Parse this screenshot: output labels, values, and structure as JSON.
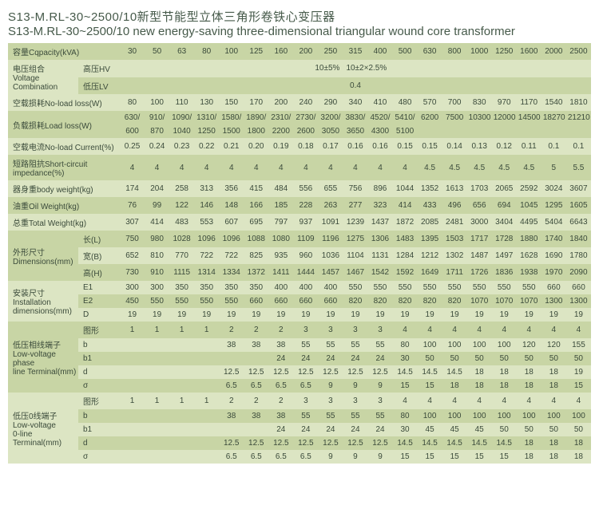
{
  "title_cn": "S13-M.RL-30~2500/10新型节能型立体三角形卷铁心变压器",
  "title_en": "S13-M.RL-30~2500/10 new energy-saving three-dimensional triangular wound core transformer",
  "colors": {
    "dark": "#c8d5a5",
    "light": "#dce5c3",
    "text": "#3a4a3a",
    "titleText": "#465a4a"
  },
  "capacity": {
    "label": "容量Cqpacity(kVA)",
    "vals": [
      "30",
      "50",
      "63",
      "80",
      "100",
      "125",
      "160",
      "200",
      "250",
      "315",
      "400",
      "500",
      "630",
      "800",
      "1000",
      "1250",
      "1600",
      "2000",
      "2500"
    ]
  },
  "voltage": {
    "label": "电压组合\nVoltage Combination",
    "hv_label": "高压HV",
    "hv_a": "10±5%",
    "hv_b": "10±2×2.5%",
    "lv_label": "低压LV",
    "lv": "0.4"
  },
  "noload": {
    "label": "空载损耗No-load loss(W)",
    "vals": [
      "80",
      "100",
      "110",
      "130",
      "150",
      "170",
      "200",
      "240",
      "290",
      "340",
      "410",
      "480",
      "570",
      "700",
      "830",
      "970",
      "1170",
      "1540",
      "1810"
    ]
  },
  "loadloss": {
    "label": "负载损耗Load loss(W)",
    "row1": [
      "630/",
      "910/",
      "1090/",
      "1310/",
      "1580/",
      "1890/",
      "2310/",
      "2730/",
      "3200/",
      "3830/",
      "4520/",
      "5410/",
      "6200",
      "7500",
      "10300",
      "12000",
      "14500",
      "18270",
      "21210"
    ],
    "row2": [
      "600",
      "870",
      "1040",
      "1250",
      "1500",
      "1800",
      "2200",
      "2600",
      "3050",
      "3650",
      "4300",
      "5100",
      "",
      "",
      "",
      "",
      "",
      "",
      ""
    ]
  },
  "nlcurrent": {
    "label": "空载电流No-load Current(%)",
    "vals": [
      "0.25",
      "0.24",
      "0.23",
      "0.22",
      "0.21",
      "0.20",
      "0.19",
      "0.18",
      "0.17",
      "0.16",
      "0.16",
      "0.15",
      "0.15",
      "0.14",
      "0.13",
      "0.12",
      "0.11",
      "0.1",
      "0.1"
    ]
  },
  "sc": {
    "label": "短路阻抗Short-circuit impedance(%)",
    "vals": [
      "4",
      "4",
      "4",
      "4",
      "4",
      "4",
      "4",
      "4",
      "4",
      "4",
      "4",
      "4",
      "4.5",
      "4.5",
      "4.5",
      "4.5",
      "4.5",
      "5",
      "5.5"
    ]
  },
  "body": {
    "label": "器身重body weight(kg)",
    "vals": [
      "174",
      "204",
      "258",
      "313",
      "356",
      "415",
      "484",
      "556",
      "655",
      "756",
      "896",
      "1044",
      "1352",
      "1613",
      "1703",
      "2065",
      "2592",
      "3024",
      "3607"
    ]
  },
  "oil": {
    "label": "油重Oil Weight(kg)",
    "vals": [
      "76",
      "99",
      "122",
      "146",
      "148",
      "166",
      "185",
      "228",
      "263",
      "277",
      "323",
      "414",
      "433",
      "496",
      "656",
      "694",
      "1045",
      "1295",
      "1605"
    ]
  },
  "total": {
    "label": "总重Total Weight(kg)",
    "vals": [
      "307",
      "414",
      "483",
      "553",
      "607",
      "695",
      "797",
      "937",
      "1091",
      "1239",
      "1437",
      "1872",
      "2085",
      "2481",
      "3000",
      "3404",
      "4495",
      "5404",
      "6643"
    ]
  },
  "dims": {
    "label": "外形尺寸\nDimensions(mm)",
    "L": {
      "lab": "长(L)",
      "vals": [
        "750",
        "980",
        "1028",
        "1096",
        "1096",
        "1088",
        "1080",
        "1109",
        "1196",
        "1275",
        "1306",
        "1483",
        "1395",
        "1503",
        "1717",
        "1728",
        "1880",
        "1740",
        "1840"
      ]
    },
    "B": {
      "lab": "宽(B)",
      "vals": [
        "652",
        "810",
        "770",
        "722",
        "722",
        "825",
        "935",
        "960",
        "1036",
        "1104",
        "1131",
        "1284",
        "1212",
        "1302",
        "1487",
        "1497",
        "1628",
        "1690",
        "1780"
      ]
    },
    "H": {
      "lab": "高(H)",
      "vals": [
        "730",
        "910",
        "1115",
        "1314",
        "1334",
        "1372",
        "1411",
        "1444",
        "1457",
        "1467",
        "1542",
        "1592",
        "1649",
        "1711",
        "1726",
        "1836",
        "1938",
        "1970",
        "2090"
      ]
    }
  },
  "inst": {
    "label": "安装尺寸\nInstallation\ndimensions(mm)",
    "E1": {
      "lab": "E1",
      "vals": [
        "300",
        "300",
        "350",
        "350",
        "350",
        "350",
        "400",
        "400",
        "400",
        "550",
        "550",
        "550",
        "550",
        "550",
        "550",
        "550",
        "550",
        "660",
        "660"
      ]
    },
    "E2": {
      "lab": "E2",
      "vals": [
        "450",
        "550",
        "550",
        "550",
        "550",
        "660",
        "660",
        "660",
        "660",
        "820",
        "820",
        "820",
        "820",
        "820",
        "1070",
        "1070",
        "1070",
        "1300",
        "1300"
      ]
    },
    "D": {
      "lab": "D",
      "vals": [
        "19",
        "19",
        "19",
        "19",
        "19",
        "19",
        "19",
        "19",
        "19",
        "19",
        "19",
        "19",
        "19",
        "19",
        "19",
        "19",
        "19",
        "19",
        "19"
      ]
    }
  },
  "phase": {
    "label": "低压相线端子\nLow-voltage phase\nline Terminal(mm)",
    "tx": {
      "lab": "图形",
      "vals": [
        "1",
        "1",
        "1",
        "1",
        "2",
        "2",
        "2",
        "3",
        "3",
        "3",
        "3",
        "4",
        "4",
        "4",
        "4",
        "4",
        "4",
        "4",
        "4"
      ]
    },
    "b": {
      "lab": "b",
      "vals": [
        "",
        "",
        "",
        "",
        "38",
        "38",
        "38",
        "55",
        "55",
        "55",
        "55",
        "80",
        "100",
        "100",
        "100",
        "100",
        "120",
        "120",
        "155"
      ]
    },
    "b1": {
      "lab": "b1",
      "vals": [
        "",
        "",
        "",
        "",
        "",
        "",
        "24",
        "24",
        "24",
        "24",
        "24",
        "30",
        "50",
        "50",
        "50",
        "50",
        "50",
        "50",
        "50"
      ]
    },
    "d": {
      "lab": "d",
      "vals": [
        "",
        "",
        "",
        "",
        "12.5",
        "12.5",
        "12.5",
        "12.5",
        "12.5",
        "12.5",
        "12.5",
        "14.5",
        "14.5",
        "14.5",
        "18",
        "18",
        "18",
        "18",
        "19"
      ]
    },
    "s": {
      "lab": "σ",
      "vals": [
        "",
        "",
        "",
        "",
        "6.5",
        "6.5",
        "6.5",
        "6.5",
        "9",
        "9",
        "9",
        "15",
        "15",
        "18",
        "18",
        "18",
        "18",
        "18",
        "15"
      ]
    }
  },
  "zero": {
    "label": "低压0线端子\nLow-voltage\n0-line Terminal(mm)",
    "tx": {
      "lab": "图形",
      "vals": [
        "1",
        "1",
        "1",
        "1",
        "2",
        "2",
        "2",
        "3",
        "3",
        "3",
        "3",
        "4",
        "4",
        "4",
        "4",
        "4",
        "4",
        "4",
        "4"
      ]
    },
    "b": {
      "lab": "b",
      "vals": [
        "",
        "",
        "",
        "",
        "38",
        "38",
        "38",
        "55",
        "55",
        "55",
        "55",
        "80",
        "100",
        "100",
        "100",
        "100",
        "100",
        "100",
        "100"
      ]
    },
    "b1": {
      "lab": "b1",
      "vals": [
        "",
        "",
        "",
        "",
        "",
        "",
        "24",
        "24",
        "24",
        "24",
        "24",
        "30",
        "45",
        "45",
        "45",
        "50",
        "50",
        "50",
        "50"
      ]
    },
    "d": {
      "lab": "d",
      "vals": [
        "",
        "",
        "",
        "",
        "12.5",
        "12.5",
        "12.5",
        "12.5",
        "12.5",
        "12.5",
        "12.5",
        "14.5",
        "14.5",
        "14.5",
        "14.5",
        "14.5",
        "18",
        "18",
        "18"
      ]
    },
    "s": {
      "lab": "σ",
      "vals": [
        "",
        "",
        "",
        "",
        "6.5",
        "6.5",
        "6.5",
        "6.5",
        "9",
        "9",
        "9",
        "15",
        "15",
        "15",
        "15",
        "15",
        "18",
        "18",
        "18"
      ]
    }
  }
}
